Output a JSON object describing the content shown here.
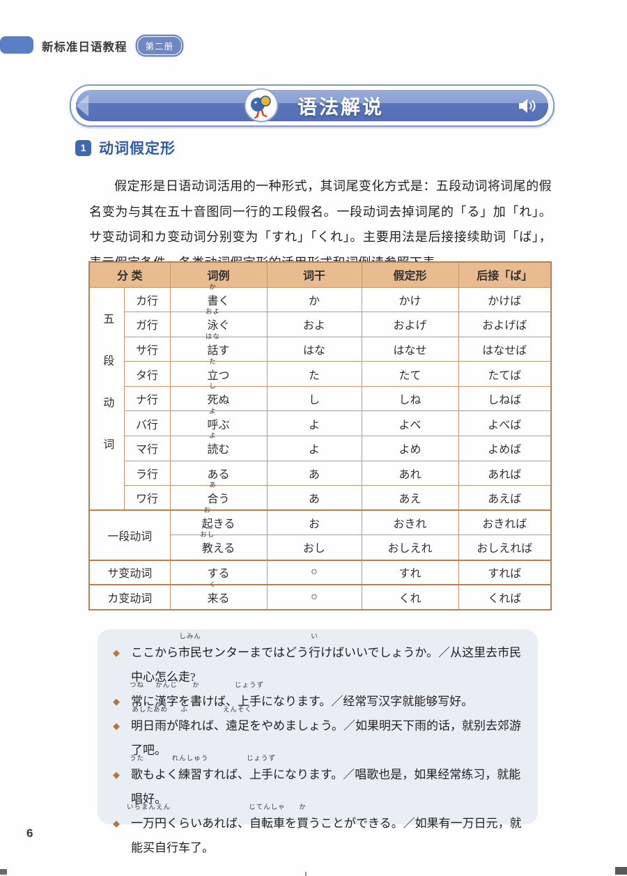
{
  "brand": {
    "title": "新标准日语教程",
    "badge": "第二册"
  },
  "banner": {
    "title": "语法解说"
  },
  "section": {
    "number": "1",
    "title": "动词假定形"
  },
  "intro": "假定形是日语动词活用的一种形式，其词尾变化方式是：五段动词将词尾的假名变为与其在五十音图同一行的エ段假名。一段动词去掉词尾的「る」加「れ」。サ变动词和カ变动词分别变为「すれ」「くれ」。主要用法是后接接续助词「ば」，表示假定条件。各类动词假定形的活用形式和词例请参照下表。",
  "table": {
    "headers": [
      "分 类",
      "词例",
      "词干",
      "假定形",
      "后接「ば」"
    ],
    "groups": [
      {
        "label": "五段动词",
        "vertical": true,
        "rows": [
          {
            "row_label": "カ行",
            "example": [
              [
                "書",
                "か"
              ],
              [
                "く",
                null
              ]
            ],
            "stem": "か",
            "conditional": "かけ",
            "ba": "かけば"
          },
          {
            "row_label": "ガ行",
            "example": [
              [
                "泳",
                "およ"
              ],
              [
                "ぐ",
                null
              ]
            ],
            "stem": "およ",
            "conditional": "およげ",
            "ba": "およげば"
          },
          {
            "row_label": "サ行",
            "example": [
              [
                "話",
                "はな"
              ],
              [
                "す",
                null
              ]
            ],
            "stem": "はな",
            "conditional": "はなせ",
            "ba": "はなせば"
          },
          {
            "row_label": "タ行",
            "example": [
              [
                "立",
                "た"
              ],
              [
                "つ",
                null
              ]
            ],
            "stem": "た",
            "conditional": "たて",
            "ba": "たてば"
          },
          {
            "row_label": "ナ行",
            "example": [
              [
                "死",
                "し"
              ],
              [
                "ぬ",
                null
              ]
            ],
            "stem": "し",
            "conditional": "しね",
            "ba": "しねば"
          },
          {
            "row_label": "バ行",
            "example": [
              [
                "呼",
                "よ"
              ],
              [
                "ぶ",
                null
              ]
            ],
            "stem": "よ",
            "conditional": "よべ",
            "ba": "よべば"
          },
          {
            "row_label": "マ行",
            "example": [
              [
                "読",
                "よ"
              ],
              [
                "む",
                null
              ]
            ],
            "stem": "よ",
            "conditional": "よめ",
            "ba": "よめば"
          },
          {
            "row_label": "ラ行",
            "example": [
              [
                "ある",
                null
              ]
            ],
            "stem": "あ",
            "conditional": "あれ",
            "ba": "あれば"
          },
          {
            "row_label": "ワ行",
            "example": [
              [
                "合",
                "あ"
              ],
              [
                "う",
                null
              ]
            ],
            "stem": "あ",
            "conditional": "あえ",
            "ba": "あえば"
          }
        ]
      },
      {
        "label": "一段动词",
        "vertical": false,
        "rows": [
          {
            "row_label": null,
            "example": [
              [
                "起",
                "お"
              ],
              [
                "きる",
                null
              ]
            ],
            "stem": "お",
            "conditional": "おきれ",
            "ba": "おきれば"
          },
          {
            "row_label": null,
            "example": [
              [
                "教",
                "おし"
              ],
              [
                "える",
                null
              ]
            ],
            "stem": "おし",
            "conditional": "おしえれ",
            "ba": "おしえれば"
          }
        ]
      },
      {
        "label": "サ变动词",
        "vertical": false,
        "rows": [
          {
            "row_label": null,
            "example": [
              [
                "する",
                null
              ]
            ],
            "stem": "○",
            "conditional": "すれ",
            "ba": "すれば"
          }
        ]
      },
      {
        "label": "カ变动词",
        "vertical": false,
        "rows": [
          {
            "row_label": null,
            "example": [
              [
                "来",
                "く"
              ],
              [
                "る",
                null
              ]
            ],
            "stem": "○",
            "conditional": "くれ",
            "ba": "くれば"
          }
        ]
      }
    ]
  },
  "examples": [
    {
      "segments": [
        [
          "ここから",
          null
        ],
        [
          "市民",
          "しみん"
        ],
        [
          "センターまではどう",
          null
        ],
        [
          "行",
          "い"
        ],
        [
          "けばいいでしょうか。／从这里去市民中心怎么走?",
          null
        ]
      ]
    },
    {
      "segments": [
        [
          "常",
          "つね"
        ],
        [
          "に",
          null
        ],
        [
          "漢字",
          "かんじ"
        ],
        [
          "を",
          null
        ],
        [
          "書",
          "か"
        ],
        [
          "けば、",
          null
        ],
        [
          "上手",
          "じょうず"
        ],
        [
          "になります。／经常写汉字就能够写好。",
          null
        ]
      ]
    },
    {
      "segments": [
        [
          "明日",
          "あした"
        ],
        [
          "雨",
          "あめ"
        ],
        [
          "が",
          null
        ],
        [
          "降",
          "ふ"
        ],
        [
          "れば、",
          null
        ],
        [
          "遠足",
          "えんそく"
        ],
        [
          "をやめましょう。／如果明天下雨的话，就别去郊游了吧。",
          null
        ]
      ]
    },
    {
      "segments": [
        [
          "歌",
          "うた"
        ],
        [
          "もよく",
          null
        ],
        [
          "練習",
          "れんしゅう"
        ],
        [
          "すれば、",
          null
        ],
        [
          "上手",
          "じょうず"
        ],
        [
          "になります。／唱歌也是，如果经常练习，就能唱好。",
          null
        ]
      ]
    },
    {
      "segments": [
        [
          "一万円",
          "いちまんえん"
        ],
        [
          "くらいあれば、",
          null
        ],
        [
          "自転車",
          "じてんしゃ"
        ],
        [
          "を",
          null
        ],
        [
          "買",
          "か"
        ],
        [
          "うことができる。／如果有一万日元，就能买自行车了。",
          null
        ]
      ]
    }
  ],
  "page_number": "6",
  "colors": {
    "banner_blue": "#5570b6",
    "accent_blue": "#2e5ca6",
    "header_tan": "#e9bc90",
    "table_border": "#b97f4e",
    "examples_bg": "#e9edf4",
    "diamond": "#b5763a"
  }
}
